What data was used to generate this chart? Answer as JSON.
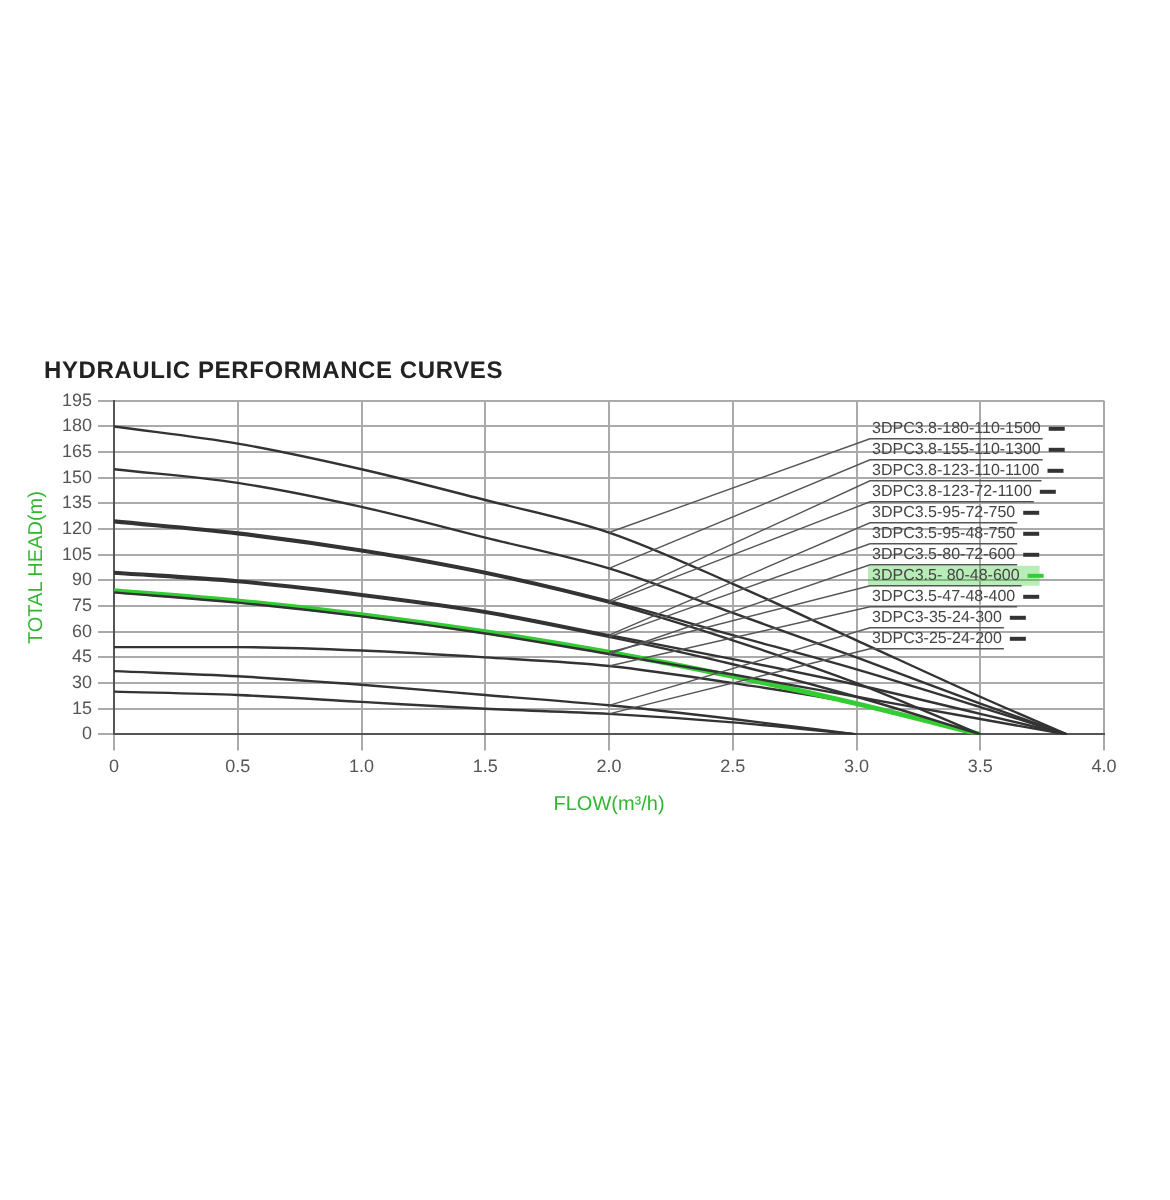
{
  "chart_data": {
    "type": "line",
    "title": "HYDRAULIC PERFORMANCE CURVES",
    "xlabel": "FLOW(m³/h)",
    "ylabel": "TOTAL HEAD(m)",
    "xlim": [
      0,
      4
    ],
    "xticks": [
      {
        "value": 0,
        "label": "0"
      },
      0.5,
      {
        "value": 1,
        "label": "1.0"
      },
      1.5,
      {
        "value": 2,
        "label": "2.0"
      },
      2.5,
      {
        "value": 3,
        "label": "3.0"
      },
      3.5,
      {
        "value": 4,
        "label": "4.0"
      }
    ],
    "ylim": [
      0,
      195
    ],
    "yticks": [
      0,
      15,
      30,
      45,
      60,
      75,
      90,
      105,
      120,
      135,
      150,
      165,
      180,
      195
    ],
    "grid": true,
    "legend": "top right",
    "marker": "none",
    "line_style": "solid",
    "series": [
      {
        "name": "3DPC3.8-180-110-1500",
        "color": "#333333",
        "x": [
          0,
          0.5,
          1,
          1.5,
          2,
          2.5,
          3,
          3.5,
          3.85
        ],
        "values": [
          180,
          170,
          155,
          137,
          118,
          88,
          55,
          22,
          0
        ]
      },
      {
        "name": "3DPC3.8-155-110-1300",
        "color": "#333333",
        "x": [
          0,
          0.5,
          1,
          1.5,
          2,
          2.5,
          3,
          3.5,
          3.85
        ],
        "values": [
          155,
          147,
          133,
          115,
          97,
          71,
          45,
          18,
          0
        ]
      },
      {
        "name": "3DPC3.8-123-110-1100",
        "color": "#333333",
        "x": [
          0,
          0.5,
          1,
          1.5,
          2,
          2.5,
          3,
          3.5,
          3.85
        ],
        "values": [
          125,
          118,
          108,
          95,
          78,
          58,
          38,
          16,
          0
        ]
      },
      {
        "name": "3DPC3.8-123-72-1100",
        "color": "#333333",
        "x": [
          0,
          0.5,
          1,
          1.5,
          2,
          2.5,
          3,
          3.5
        ],
        "values": [
          124,
          117,
          107,
          94,
          77,
          55,
          30,
          0
        ]
      },
      {
        "name": "3DPC3.5-95-72-750",
        "color": "#333333",
        "x": [
          0,
          0.5,
          1,
          1.5,
          2,
          2.5,
          3,
          3.5,
          3.85
        ],
        "values": [
          95,
          90,
          82,
          72,
          58,
          44,
          29,
          12,
          0
        ]
      },
      {
        "name": "3DPC3.5-95-48-750",
        "color": "#333333",
        "x": [
          0,
          0.5,
          1,
          1.5,
          2,
          2.5,
          3,
          3.5
        ],
        "values": [
          94,
          89,
          81,
          71,
          57,
          41,
          22,
          0
        ]
      },
      {
        "name": "3DPC3.5-80-72-600",
        "color": "#333333",
        "x": [
          0,
          0.5,
          1,
          1.5,
          2,
          2.5,
          3,
          3.5,
          3.85
        ],
        "values": [
          83,
          77,
          69,
          59,
          47,
          35,
          22,
          9,
          0
        ]
      },
      {
        "name": "3DPC3.5- 80-48-600",
        "color": "#33cc33",
        "x": [
          0,
          0.5,
          1,
          1.5,
          2,
          2.5,
          3,
          3.5
        ],
        "values": [
          84,
          78,
          70,
          60,
          48,
          34,
          18,
          0
        ]
      },
      {
        "name": "3DPC3.5-47-48-400",
        "color": "#333333",
        "x": [
          0,
          0.5,
          1,
          1.5,
          2,
          2.5,
          3,
          3.5
        ],
        "values": [
          51,
          51,
          49,
          45,
          40,
          30,
          18,
          0
        ]
      },
      {
        "name": "3DPC3-35-24-300",
        "color": "#333333",
        "x": [
          0,
          0.5,
          1,
          1.5,
          2,
          2.5,
          3
        ],
        "values": [
          37,
          34,
          29,
          23,
          17,
          9,
          0
        ]
      },
      {
        "name": "3DPC3-25-24-200",
        "color": "#333333",
        "x": [
          0,
          0.5,
          1,
          1.5,
          2,
          2.5,
          3
        ],
        "values": [
          25,
          23,
          19,
          15,
          12,
          7,
          0
        ]
      }
    ]
  }
}
